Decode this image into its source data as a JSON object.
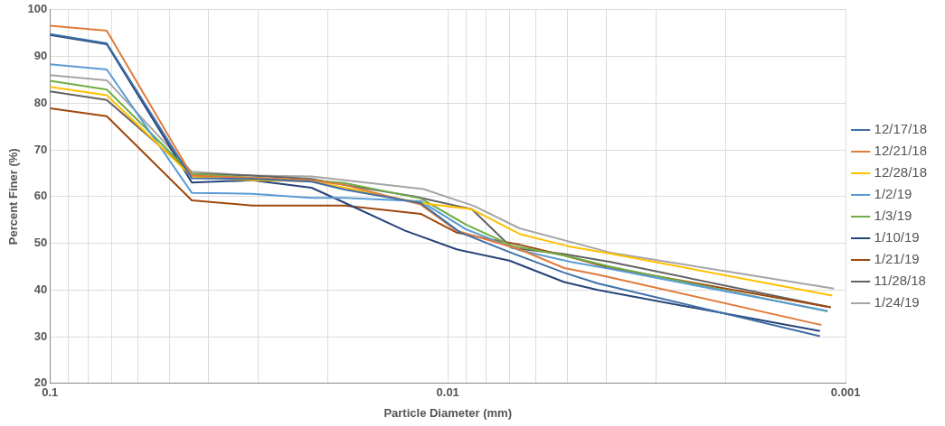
{
  "chart_data": {
    "type": "line",
    "xlabel": "Particle Diameter (mm)",
    "ylabel": "Percent Finer (%)",
    "log": "x",
    "xlim": [
      0.1,
      0.001
    ],
    "ylim": [
      20,
      100
    ],
    "xticks": [
      0.1,
      {
        "value": 0.09,
        "label": null
      },
      {
        "value": 0.08,
        "label": null
      },
      {
        "value": 0.07,
        "label": null
      },
      {
        "value": 0.06,
        "label": null
      },
      {
        "value": 0.05,
        "label": null
      },
      {
        "value": 0.04,
        "label": null
      },
      {
        "value": 0.03,
        "label": null
      },
      {
        "value": 0.02,
        "label": null
      },
      0.01,
      {
        "value": 0.009,
        "label": null
      },
      {
        "value": 0.008,
        "label": null
      },
      {
        "value": 0.007,
        "label": null
      },
      {
        "value": 0.006,
        "label": null
      },
      {
        "value": 0.005,
        "label": null
      },
      {
        "value": 0.004,
        "label": null
      },
      {
        "value": 0.003,
        "label": null
      },
      {
        "value": 0.002,
        "label": null
      },
      0.001
    ],
    "yticks": [
      20,
      30,
      40,
      50,
      60,
      70,
      80,
      90,
      100
    ],
    "grid": true,
    "legend": "right",
    "marker": "none",
    "line_style": "solid",
    "series": [
      {
        "name": "12/17/18",
        "color": "#3f6fa8",
        "x": [
          0.1,
          0.072,
          0.044,
          0.031,
          0.022,
          0.0182,
          0.0117,
          0.0093,
          0.0069,
          0.0051,
          0.0042,
          0.00116
        ],
        "values": [
          94.8,
          92.8,
          63.9,
          63.8,
          63.2,
          61.5,
          58.6,
          52.3,
          47.9,
          43.7,
          41.4,
          30.1
        ]
      },
      {
        "name": "12/21/18",
        "color": "#e07b39",
        "x": [
          0.1,
          0.072,
          0.044,
          0.031,
          0.022,
          0.0182,
          0.0117,
          0.0095,
          0.0066,
          0.0051,
          0.0042,
          0.00115
        ],
        "values": [
          96.6,
          95.5,
          64.5,
          64.0,
          63.5,
          62.5,
          58.3,
          52.7,
          48.7,
          44.7,
          43.3,
          32.5
        ]
      },
      {
        "name": "12/28/18",
        "color": "#ffc000",
        "x": [
          0.1,
          0.072,
          0.044,
          0.031,
          0.022,
          0.0182,
          0.0117,
          0.0087,
          0.0066,
          0.005,
          0.0039,
          0.00108
        ],
        "values": [
          83.5,
          81.7,
          64.3,
          63.5,
          63.3,
          61.9,
          58.6,
          57.3,
          52.0,
          49.4,
          47.8,
          38.8
        ]
      },
      {
        "name": "1/2/19",
        "color": "#5b9bd5",
        "x": [
          0.1,
          0.072,
          0.044,
          0.031,
          0.022,
          0.0182,
          0.0117,
          0.009,
          0.0066,
          0.0049,
          0.0039,
          0.00111
        ],
        "values": [
          88.3,
          87.2,
          60.8,
          60.6,
          59.7,
          59.7,
          59.0,
          53.0,
          48.5,
          46.0,
          44.5,
          35.5
        ]
      },
      {
        "name": "1/3/19",
        "color": "#70ad47",
        "x": [
          0.1,
          0.072,
          0.044,
          0.031,
          0.022,
          0.0182,
          0.0117,
          0.009,
          0.0069,
          0.0051,
          0.0039,
          0.00111
        ],
        "values": [
          84.8,
          82.9,
          64.9,
          64.0,
          63.5,
          62.9,
          59.6,
          54.0,
          49.5,
          47.4,
          45.0,
          35.4
        ]
      },
      {
        "name": "1/10/19",
        "color": "#264478",
        "x": [
          0.1,
          0.072,
          0.044,
          0.031,
          0.022,
          0.0182,
          0.0128,
          0.0095,
          0.007,
          0.0051,
          0.0042,
          0.00116
        ],
        "values": [
          94.6,
          92.6,
          63.0,
          63.5,
          61.9,
          58.7,
          52.7,
          48.7,
          46.3,
          41.7,
          40.0,
          31.2
        ]
      },
      {
        "name": "1/21/19",
        "color": "#9e480e",
        "x": [
          0.1,
          0.072,
          0.044,
          0.031,
          0.022,
          0.0182,
          0.0117,
          0.0095,
          0.008,
          0.0066,
          0.0051,
          0.0039,
          0.00109
        ],
        "values": [
          78.9,
          77.2,
          59.2,
          58.1,
          58.1,
          58.1,
          56.3,
          52.3,
          51.0,
          49.7,
          47.4,
          44.7,
          36.3
        ]
      },
      {
        "name": "11/28/18",
        "color": "#636363",
        "x": [
          0.1,
          0.072,
          0.044,
          0.031,
          0.022,
          0.0182,
          0.0121,
          0.0087,
          0.0069,
          0.0051,
          0.0039,
          0.00109
        ],
        "values": [
          82.5,
          80.7,
          64.9,
          64.5,
          63.8,
          62.5,
          60.0,
          57.3,
          49.0,
          47.7,
          46.0,
          36.3
        ]
      },
      {
        "name": "1/24/19",
        "color": "#a5a5a5",
        "x": [
          0.1,
          0.072,
          0.044,
          0.031,
          0.022,
          0.0115,
          0.0086,
          0.0066,
          0.0039,
          0.00107
        ],
        "values": [
          86.0,
          84.9,
          65.3,
          64.5,
          64.3,
          61.6,
          58.0,
          53.2,
          48.0,
          40.3
        ]
      }
    ]
  }
}
